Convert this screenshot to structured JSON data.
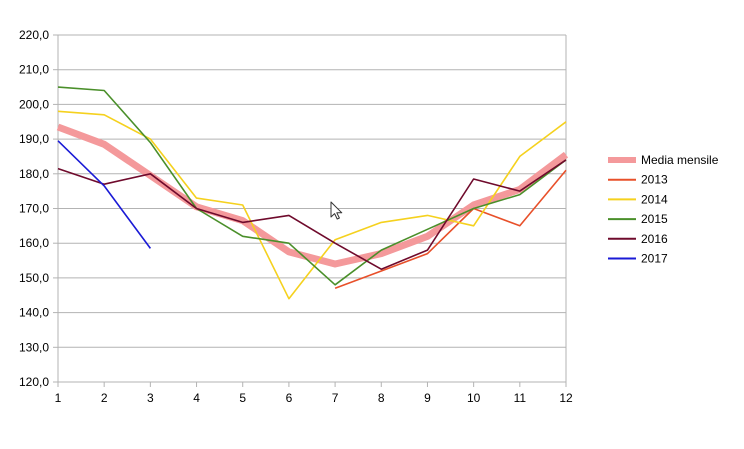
{
  "chart_data": {
    "type": "line",
    "title": "",
    "xlabel": "",
    "ylabel": "",
    "x": [
      1,
      2,
      3,
      4,
      5,
      6,
      7,
      8,
      9,
      10,
      11,
      12
    ],
    "x_tick_labels": [
      "1",
      "2",
      "3",
      "4",
      "5",
      "6",
      "7",
      "8",
      "9",
      "10",
      "11",
      "12"
    ],
    "ylim": [
      120,
      220
    ],
    "y_ticks": [
      120,
      130,
      140,
      150,
      160,
      170,
      180,
      190,
      200,
      210,
      220
    ],
    "y_tick_labels": [
      "120,0",
      "130,0",
      "140,0",
      "150,0",
      "160,0",
      "170,0",
      "180,0",
      "190,0",
      "200,0",
      "210,0",
      "220,0"
    ],
    "grid": "horizontal",
    "legend_position": "right",
    "series": [
      {
        "name": "Media mensile",
        "color": "#f4999b",
        "width": "thick",
        "values": [
          193.5,
          188.5,
          179.5,
          170.5,
          166.5,
          157.5,
          154.0,
          157.0,
          162.0,
          171.0,
          175.5,
          185.5
        ]
      },
      {
        "name": "2013",
        "color": "#e8502a",
        "width": "thin",
        "values": [
          null,
          null,
          null,
          null,
          null,
          null,
          147.0,
          152.0,
          157.0,
          170.0,
          165.0,
          181.0
        ]
      },
      {
        "name": "2014",
        "color": "#f5d11e",
        "width": "thin",
        "values": [
          198.0,
          197.0,
          190.0,
          173.0,
          171.0,
          144.0,
          161.0,
          166.0,
          168.0,
          165.0,
          185.0,
          195.0
        ]
      },
      {
        "name": "2015",
        "color": "#4a8f2a",
        "width": "thin",
        "values": [
          205.0,
          204.0,
          189.0,
          170.0,
          162.0,
          160.0,
          148.0,
          158.0,
          164.0,
          170.0,
          174.0,
          184.0
        ]
      },
      {
        "name": "2016",
        "color": "#6f0a2c",
        "width": "thin",
        "values": [
          181.5,
          177.0,
          180.0,
          170.0,
          166.0,
          168.0,
          160.0,
          152.5,
          158.0,
          178.5,
          175.0,
          184.0
        ]
      },
      {
        "name": "2017",
        "color": "#1a1ad6",
        "width": "thin",
        "values": [
          189.5,
          176.5,
          158.5,
          null,
          null,
          null,
          null,
          null,
          null,
          null,
          null,
          null
        ]
      }
    ]
  },
  "cursor": {
    "icon": "mouse-pointer-icon"
  }
}
